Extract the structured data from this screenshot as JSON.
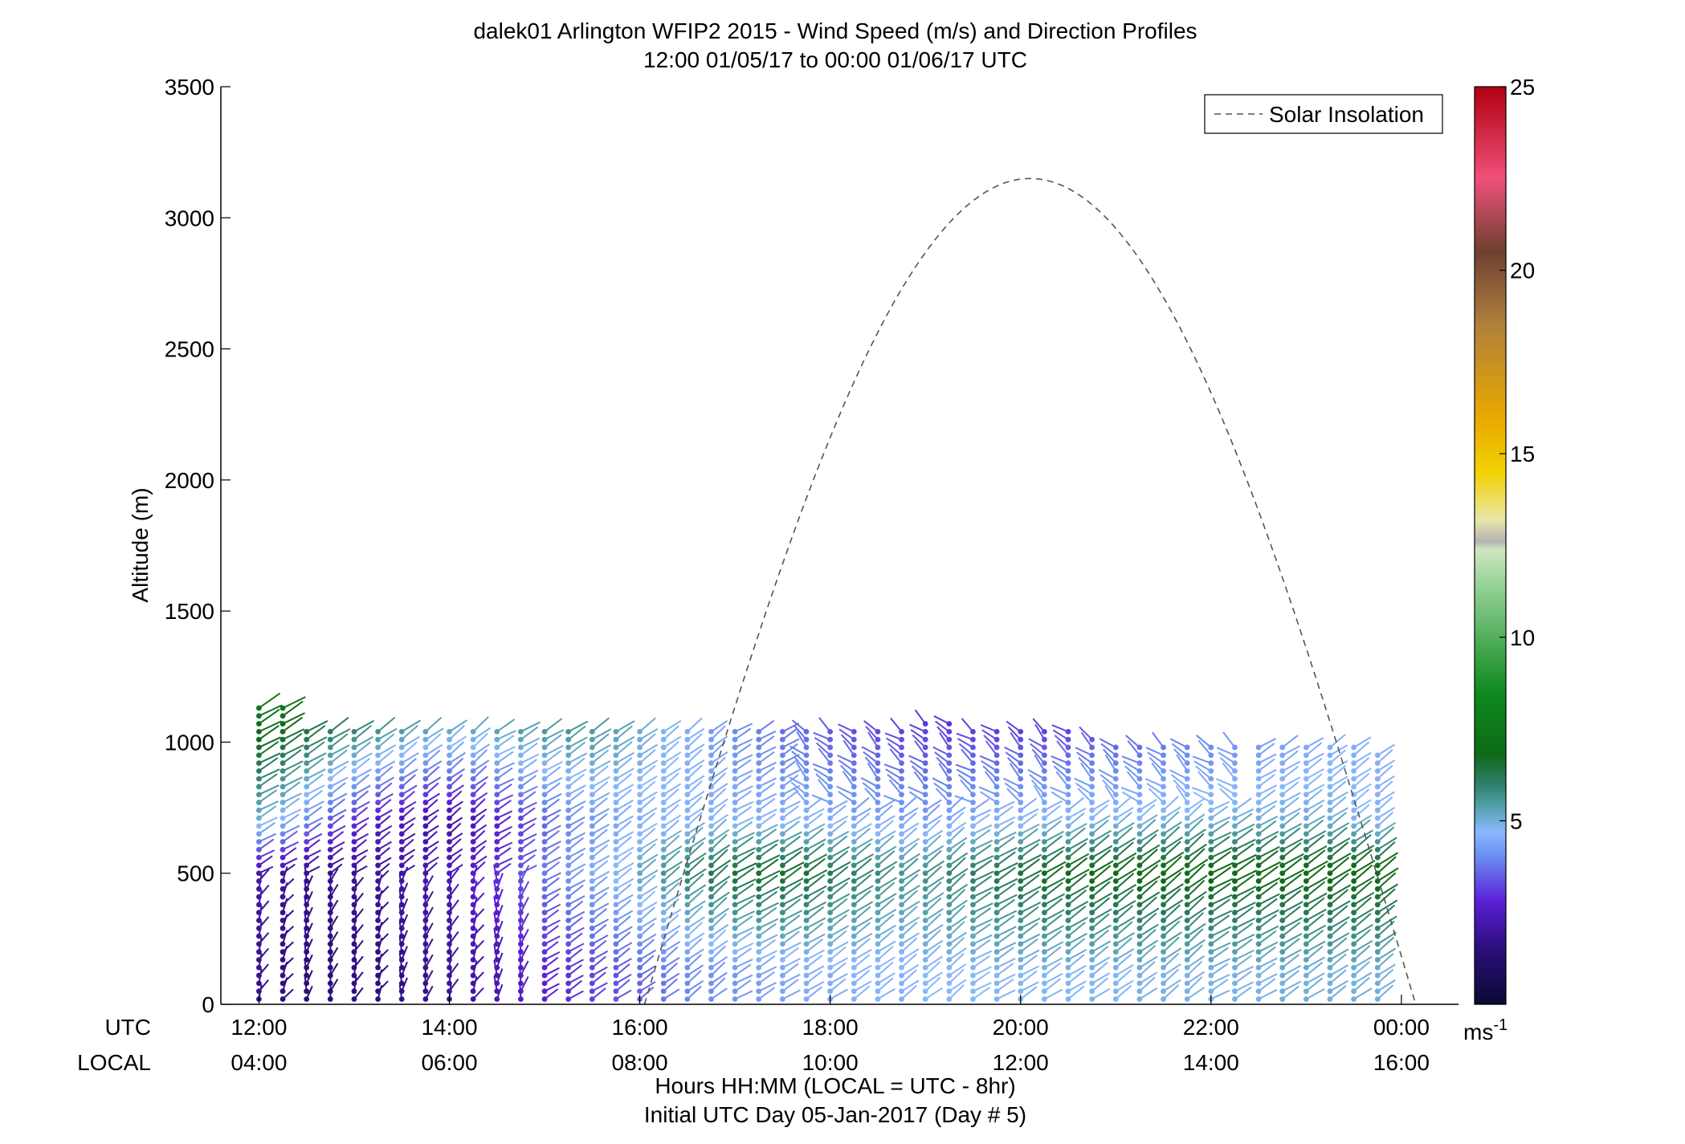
{
  "figure": {
    "title_line1": "dalek01 Arlington WFIP2 2015 - Wind Speed (m/s) and Direction Profiles",
    "title_line2": "12:00 01/05/17 to 00:00 01/06/17  UTC",
    "xaxis_label_line1": "Hours HH:MM  (LOCAL = UTC - 8hr)",
    "xaxis_label_line2": "Initial UTC Day 05-Jan-2017 (Day # 5)",
    "utc_row_label": "UTC",
    "local_row_label": "LOCAL",
    "colorbar_unit": "ms",
    "colorbar_unit_exp": "-1"
  },
  "chart_data": {
    "type": "scatter",
    "subtype": "wind-barb profile",
    "title": "dalek01 Arlington WFIP2 2015 - Wind Speed (m/s) and Direction Profiles",
    "subtitle": "12:00 01/05/17 to 00:00 01/06/17  UTC",
    "ylabel": "Altitude (m)",
    "ylim": [
      0,
      3500
    ],
    "yticks": [
      0,
      500,
      1000,
      1500,
      2000,
      2500,
      3000,
      3500
    ],
    "xlim_utc_hours": [
      11.6,
      24.6
    ],
    "utc_ticks": [
      "12:00",
      "14:00",
      "16:00",
      "18:00",
      "20:00",
      "22:00",
      "00:00"
    ],
    "local_ticks": [
      "04:00",
      "06:00",
      "08:00",
      "10:00",
      "12:00",
      "14:00",
      "16:00"
    ],
    "tick_hours_utc": [
      12,
      14,
      16,
      18,
      20,
      22,
      24
    ],
    "legend": {
      "entries": [
        "Solar Insolation"
      ],
      "position": "top-right"
    },
    "grid": false,
    "colorbar": {
      "range": [
        0,
        25
      ],
      "ticks": [
        5,
        10,
        15,
        20,
        25
      ],
      "stops": [
        {
          "v": 0,
          "c": "#0a0a33"
        },
        {
          "v": 1.5,
          "c": "#2a0e7a"
        },
        {
          "v": 2.8,
          "c": "#5a1ed6"
        },
        {
          "v": 4.0,
          "c": "#6a8cf0"
        },
        {
          "v": 4.7,
          "c": "#8ab8ff"
        },
        {
          "v": 5.5,
          "c": "#4a9c9c"
        },
        {
          "v": 6.0,
          "c": "#2f7f6c"
        },
        {
          "v": 6.8,
          "c": "#0e6a16"
        },
        {
          "v": 8.5,
          "c": "#0e8a1e"
        },
        {
          "v": 11.5,
          "c": "#9ad49a"
        },
        {
          "v": 12.4,
          "c": "#cfe6bf"
        },
        {
          "v": 12.6,
          "c": "#b4b4b4"
        },
        {
          "v": 13.2,
          "c": "#e8e6a8"
        },
        {
          "v": 14.5,
          "c": "#f2d200"
        },
        {
          "v": 16.0,
          "c": "#e8a800"
        },
        {
          "v": 18.5,
          "c": "#b0803c"
        },
        {
          "v": 20.5,
          "c": "#6e4030"
        },
        {
          "v": 22.5,
          "c": "#f0507a"
        },
        {
          "v": 25,
          "c": "#b00010"
        }
      ]
    },
    "solar_insolation": {
      "name": "Solar Insolation",
      "style": "dashed",
      "color": "#555555",
      "sunrise_utc": 16.05,
      "sunset_utc": 24.15,
      "peak_utc": 20.0,
      "peak_altitude": 3150
    },
    "wind_profiles": {
      "times_utc": [
        12.0,
        12.25,
        12.5,
        12.75,
        13.0,
        13.25,
        13.5,
        13.75,
        14.0,
        14.25,
        14.5,
        14.75,
        15.0,
        15.25,
        15.5,
        15.75,
        16.0,
        16.25,
        16.5,
        16.75,
        17.0,
        17.25,
        17.5,
        17.75,
        18.0,
        18.25,
        18.5,
        18.75,
        19.0,
        19.25,
        19.5,
        19.75,
        20.0,
        20.25,
        20.5,
        20.75,
        21.0,
        21.25,
        21.5,
        21.75,
        22.0,
        22.25,
        22.5,
        22.75,
        23.0,
        23.25,
        23.5,
        23.75
      ],
      "top_altitude_m": [
        1130,
        1130,
        1050,
        1060,
        1050,
        1050,
        1050,
        1050,
        1050,
        1050,
        1050,
        1050,
        1040,
        1040,
        1040,
        1040,
        1040,
        1040,
        1050,
        1050,
        1060,
        1060,
        1060,
        1050,
        1040,
        1060,
        1060,
        1060,
        1070,
        1070,
        1060,
        1050,
        1050,
        1050,
        1040,
        1020,
        1000,
        990,
        990,
        980,
        980,
        980,
        980,
        980,
        980,
        980,
        1000,
        950
      ],
      "layers": [
        {
          "below_m": 120,
          "speed_ms": [
            1.8,
            1.6,
            1.5,
            1.5,
            1.6,
            1.6,
            1.7,
            1.8,
            2.0,
            2.1,
            2.3,
            2.6,
            2.8,
            3.0,
            3.2,
            3.4,
            3.6,
            3.8,
            4.0,
            4.1,
            4.2,
            4.3,
            4.4,
            4.5,
            4.5,
            4.6,
            4.6,
            4.6,
            4.7,
            4.7,
            4.7,
            4.8,
            4.8,
            4.8,
            4.8,
            4.8,
            4.8,
            4.9,
            4.9,
            4.9,
            4.9,
            4.9,
            4.9,
            5.0,
            5.0,
            5.0,
            5.0,
            5.0
          ]
        },
        {
          "below_m": 500,
          "speed_ms": [
            2.2,
            2.0,
            1.8,
            1.8,
            1.9,
            2.0,
            2.1,
            2.2,
            2.4,
            2.7,
            3.0,
            3.4,
            3.8,
            4.2,
            4.5,
            4.8,
            5.2,
            5.6,
            6.0,
            6.3,
            6.5,
            6.6,
            6.6,
            6.5,
            6.2,
            6.0,
            5.8,
            5.6,
            5.7,
            5.9,
            6.1,
            6.3,
            6.5,
            6.7,
            6.8,
            6.9,
            6.9,
            7.0,
            7.0,
            7.0,
            7.0,
            7.0,
            7.0,
            7.0,
            7.0,
            7.0,
            7.0,
            7.0
          ]
        },
        {
          "below_m": 700,
          "speed_ms": [
            5.0,
            4.6,
            4.0,
            3.4,
            3.0,
            2.6,
            2.4,
            2.2,
            2.2,
            2.4,
            2.8,
            3.2,
            3.6,
            4.0,
            4.2,
            4.4,
            4.5,
            4.6,
            4.6,
            4.6,
            4.6,
            4.6,
            4.6,
            4.6,
            4.5,
            4.4,
            4.4,
            4.3,
            4.3,
            4.4,
            4.5,
            4.6,
            4.6,
            4.7,
            4.7,
            4.8,
            4.8,
            4.8,
            4.9,
            4.9,
            4.9,
            5.0,
            5.0,
            5.0,
            5.0,
            5.0,
            4.8,
            4.6
          ]
        },
        {
          "below_m": 1300,
          "speed_ms": [
            8.5,
            8.4,
            8.3,
            8.2,
            8.1,
            8.0,
            7.8,
            7.6,
            7.4,
            7.3,
            7.2,
            7.1,
            7.0,
            6.8,
            6.5,
            6.0,
            5.5,
            5.0,
            4.5,
            4.0,
            3.6,
            3.3,
            3.0,
            2.8,
            2.6,
            2.5,
            2.4,
            2.4,
            2.3,
            2.2,
            2.1,
            2.0,
            2.0,
            2.0,
            2.1,
            2.2,
            2.3,
            2.4,
            2.6,
            2.8,
            3.0,
            3.2,
            3.4,
            3.6,
            3.8,
            4.0,
            4.2,
            4.5
          ]
        }
      ],
      "direction_note": "barbs point toward the northeast (southwesterly flow) near the surface, northerly barbs in the morning boundary layer"
    }
  }
}
